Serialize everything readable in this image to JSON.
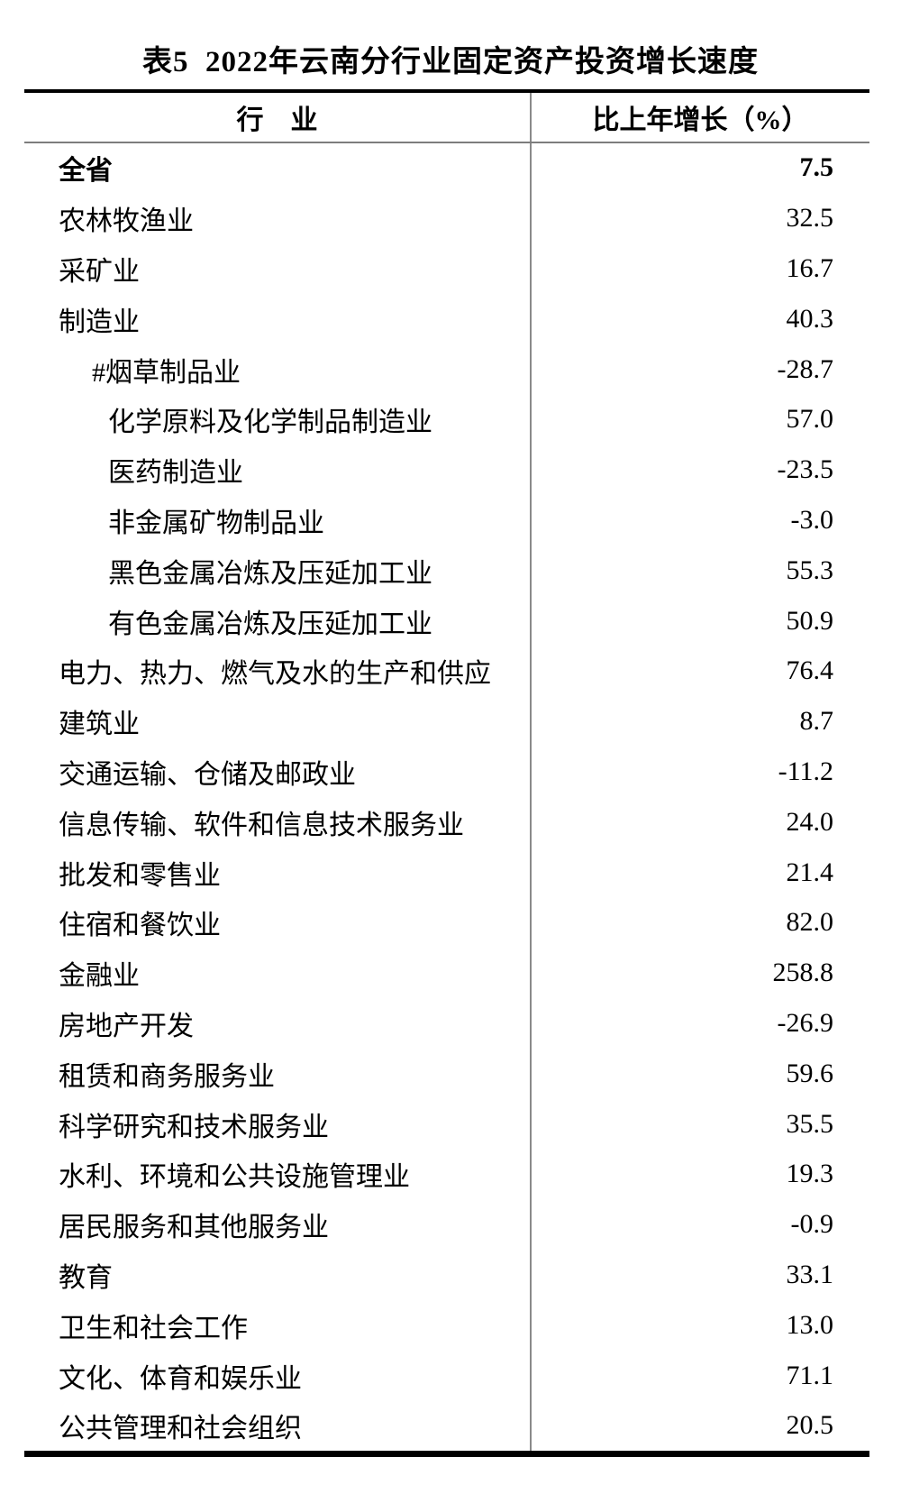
{
  "title": "表5  2022年云南分行业固定资产投资增长速度",
  "table": {
    "columns": [
      "行　业",
      "比上年增长（%）"
    ],
    "rows": [
      {
        "label": "全省",
        "value": "7.5",
        "level": 0,
        "bold": true
      },
      {
        "label": "农林牧渔业",
        "value": "32.5",
        "level": 0,
        "bold": false
      },
      {
        "label": "采矿业",
        "value": "16.7",
        "level": 0,
        "bold": false
      },
      {
        "label": "制造业",
        "value": "40.3",
        "level": 0,
        "bold": false
      },
      {
        "label": "#烟草制品业",
        "value": "-28.7",
        "level": 1,
        "bold": false
      },
      {
        "label": "化学原料及化学制品制造业",
        "value": "57.0",
        "level": 2,
        "bold": false
      },
      {
        "label": "医药制造业",
        "value": "-23.5",
        "level": 2,
        "bold": false
      },
      {
        "label": "非金属矿物制品业",
        "value": "-3.0",
        "level": 2,
        "bold": false
      },
      {
        "label": "黑色金属冶炼及压延加工业",
        "value": "55.3",
        "level": 2,
        "bold": false
      },
      {
        "label": "有色金属冶炼及压延加工业",
        "value": "50.9",
        "level": 2,
        "bold": false
      },
      {
        "label": "电力、热力、燃气及水的生产和供应",
        "value": "76.4",
        "level": 0,
        "bold": false
      },
      {
        "label": "建筑业",
        "value": "8.7",
        "level": 0,
        "bold": false
      },
      {
        "label": "交通运输、仓储及邮政业",
        "value": "-11.2",
        "level": 0,
        "bold": false
      },
      {
        "label": "信息传输、软件和信息技术服务业",
        "value": "24.0",
        "level": 0,
        "bold": false
      },
      {
        "label": "批发和零售业",
        "value": "21.4",
        "level": 0,
        "bold": false
      },
      {
        "label": "住宿和餐饮业",
        "value": "82.0",
        "level": 0,
        "bold": false
      },
      {
        "label": "金融业",
        "value": "258.8",
        "level": 0,
        "bold": false
      },
      {
        "label": "房地产开发",
        "value": "-26.9",
        "level": 0,
        "bold": false
      },
      {
        "label": "租赁和商务服务业",
        "value": "59.6",
        "level": 0,
        "bold": false
      },
      {
        "label": "科学研究和技术服务业",
        "value": "35.5",
        "level": 0,
        "bold": false
      },
      {
        "label": "水利、环境和公共设施管理业",
        "value": "19.3",
        "level": 0,
        "bold": false
      },
      {
        "label": "居民服务和其他服务业",
        "value": "-0.9",
        "level": 0,
        "bold": false
      },
      {
        "label": "教育",
        "value": "33.1",
        "level": 0,
        "bold": false
      },
      {
        "label": "卫生和社会工作",
        "value": "13.0",
        "level": 0,
        "bold": false
      },
      {
        "label": "文化、体育和娱乐业",
        "value": "71.1",
        "level": 0,
        "bold": false
      },
      {
        "label": "公共管理和社会组织",
        "value": "20.5",
        "level": 0,
        "bold": false
      }
    ]
  }
}
